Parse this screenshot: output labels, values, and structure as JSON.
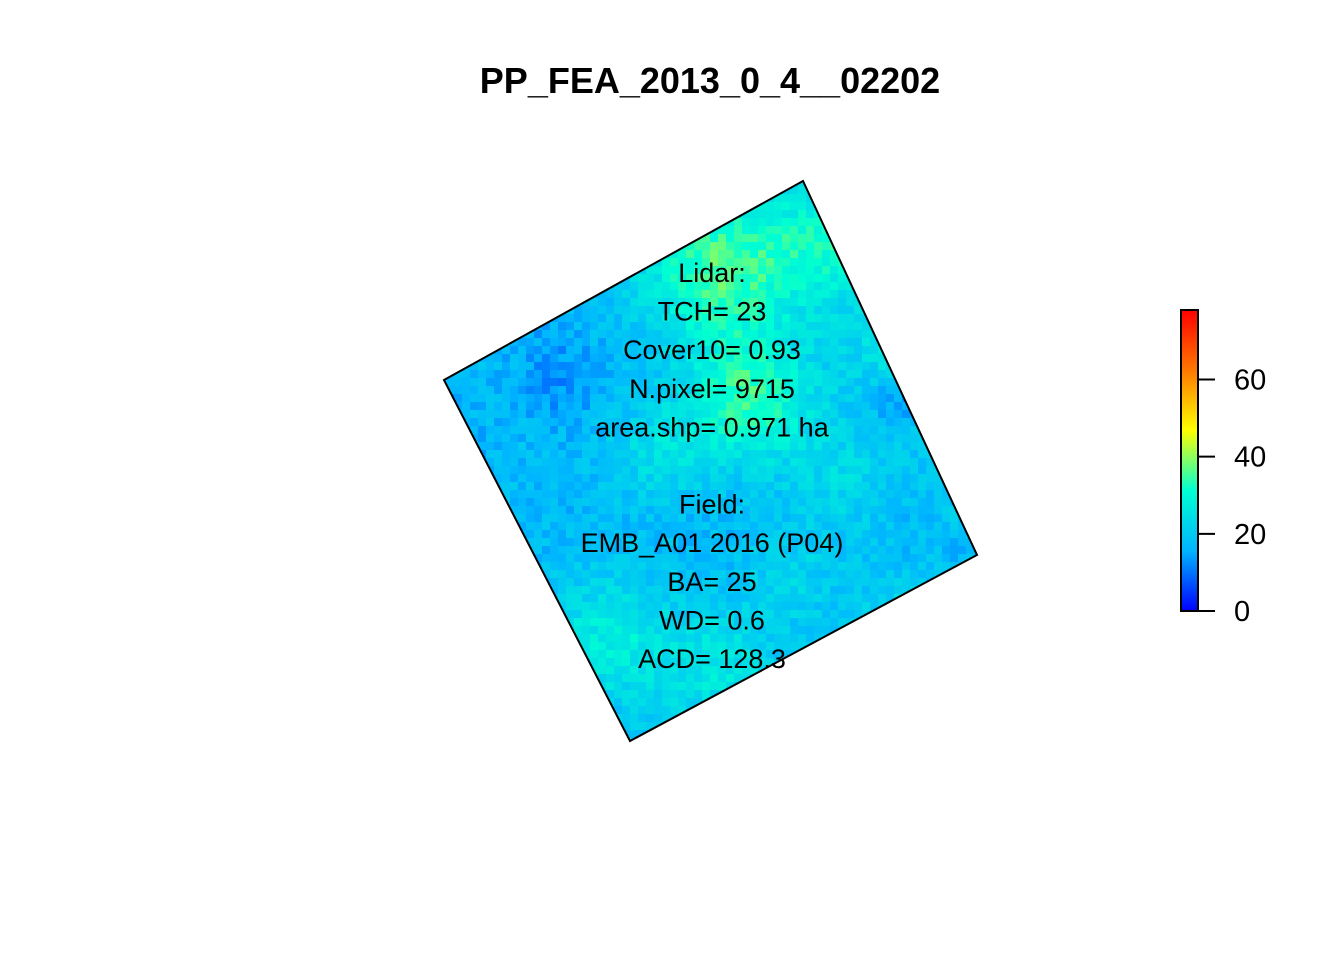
{
  "chart_data": {
    "type": "heatmap",
    "title": "PP_FEA_2013_0_4__02202",
    "colorbar": {
      "colors": [
        "#0000ff",
        "#00b4ff",
        "#00ffd2",
        "#ffff00",
        "#ff7800",
        "#ff0000"
      ],
      "range": [
        0,
        78
      ],
      "ticks": [
        0,
        20,
        40,
        60
      ]
    },
    "raster_summary": "Rotated square plot of lidar canopy height; values mostly 10-40",
    "annotation": {
      "lines": [
        "Lidar:",
        "TCH= 23",
        "Cover10= 0.93",
        "N.pixel= 9715",
        "area.shp= 0.971 ha",
        "",
        "Field:",
        "EMB_A01 2016 (P04)",
        "BA= 25",
        "WD= 0.6",
        "ACD= 128.3"
      ]
    }
  }
}
